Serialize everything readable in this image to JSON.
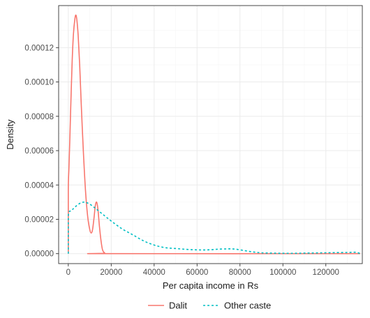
{
  "chart_data": {
    "type": "line",
    "xlabel": "Per capita income in Rs",
    "ylabel": "Density",
    "xlim": [
      -4500,
      137000
    ],
    "ylim": [
      -5.8e-06,
      0.0001445
    ],
    "x_ticks": [
      0,
      20000,
      40000,
      60000,
      80000,
      100000,
      120000
    ],
    "x_tick_labels": [
      "0",
      "20000",
      "40000",
      "60000",
      "80000",
      "100000",
      "120000"
    ],
    "y_ticks": [
      0,
      2e-05,
      4e-05,
      6e-05,
      8e-05,
      0.0001,
      0.00012
    ],
    "y_tick_labels": [
      "0.00000",
      "0.00002",
      "0.00004",
      "0.00006",
      "0.00008",
      "0.00010",
      "0.00012"
    ],
    "grid": true,
    "legend_position": "bottom",
    "series": [
      {
        "name": "Dalit",
        "color": "#F8766D",
        "dash": "solid",
        "points": [
          [
            0,
            0
          ],
          [
            0,
            3.7e-05
          ],
          [
            300,
            5e-05
          ],
          [
            700,
            6.6e-05
          ],
          [
            1200,
            8.8e-05
          ],
          [
            1800,
            0.000112
          ],
          [
            2400,
            0.000128
          ],
          [
            3000,
            0.000136
          ],
          [
            3500,
            0.000139
          ],
          [
            4000,
            0.000136
          ],
          [
            4600,
            0.000127
          ],
          [
            5300,
            0.00011
          ],
          [
            6000,
            8.8e-05
          ],
          [
            7000,
            6e-05
          ],
          [
            8000,
            3.7e-05
          ],
          [
            9000,
            2.2e-05
          ],
          [
            10000,
            1.4e-05
          ],
          [
            10700,
            1.2e-05
          ],
          [
            11300,
            1.4e-05
          ],
          [
            12000,
            2.1e-05
          ],
          [
            12600,
            2.8e-05
          ],
          [
            13200,
            3e-05
          ],
          [
            13800,
            2.6e-05
          ],
          [
            14500,
            1.6e-05
          ],
          [
            15300,
            7e-06
          ],
          [
            16000,
            2e-06
          ],
          [
            17000,
            3e-07
          ],
          [
            18000,
            0
          ],
          [
            136000,
            0
          ]
        ]
      },
      {
        "name": "Other caste",
        "color": "#00BFC4",
        "dash": "dashed",
        "points": [
          [
            0,
            0
          ],
          [
            0,
            2.2e-05
          ],
          [
            1500,
            2.5e-05
          ],
          [
            3000,
            2.7e-05
          ],
          [
            5000,
            2.9e-05
          ],
          [
            7000,
            3e-05
          ],
          [
            9000,
            2.95e-05
          ],
          [
            11000,
            2.8e-05
          ],
          [
            13000,
            2.6e-05
          ],
          [
            16000,
            2.3e-05
          ],
          [
            20000,
            1.9e-05
          ],
          [
            25000,
            1.45e-05
          ],
          [
            30000,
            1.1e-05
          ],
          [
            35000,
            7.5e-06
          ],
          [
            40000,
            5e-06
          ],
          [
            45000,
            3.5e-06
          ],
          [
            50000,
            3e-06
          ],
          [
            55000,
            2.5e-06
          ],
          [
            60000,
            2.2e-06
          ],
          [
            65000,
            2.2e-06
          ],
          [
            70000,
            2.6e-06
          ],
          [
            75000,
            2.8e-06
          ],
          [
            78000,
            2.6e-06
          ],
          [
            82000,
            1.8e-06
          ],
          [
            86000,
            1e-06
          ],
          [
            90000,
            5e-07
          ],
          [
            95000,
            3e-07
          ],
          [
            100000,
            2e-07
          ],
          [
            105000,
            2e-07
          ],
          [
            110000,
            3e-07
          ],
          [
            115000,
            4e-07
          ],
          [
            120000,
            5e-07
          ],
          [
            125000,
            6e-07
          ],
          [
            130000,
            7e-07
          ],
          [
            134000,
            8e-07
          ],
          [
            136000,
            0
          ]
        ]
      }
    ]
  }
}
